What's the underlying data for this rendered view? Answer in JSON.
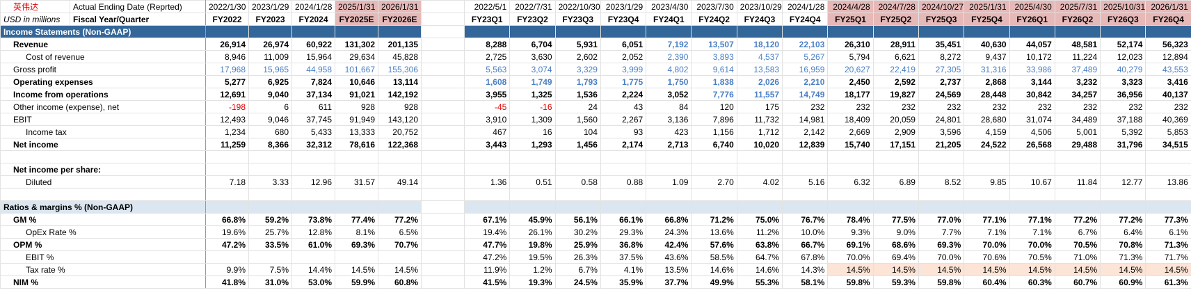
{
  "header": {
    "company": "英伟达",
    "unit": "USD in millions",
    "date_label": "Actual Ending Date (Reprted)",
    "period_label": "Fiscal Year/Quarter",
    "dates": [
      "2022/1/30",
      "2023/1/29",
      "2024/1/28",
      "2025/1/31",
      "2026/1/31",
      "2022/5/1",
      "2022/7/31",
      "2022/10/30",
      "2023/1/29",
      "2023/4/30",
      "2023/7/30",
      "2023/10/29",
      "2024/1/28",
      "2024/4/28",
      "2024/7/28",
      "2024/10/27",
      "2025/1/31",
      "2025/4/30",
      "2025/7/31",
      "2025/10/31",
      "2026/1/31"
    ],
    "periods": [
      "FY2022",
      "FY2023",
      "FY2024",
      "FY2025E",
      "FY2026E",
      "FY23Q1",
      "FY23Q2",
      "FY23Q3",
      "FY23Q4",
      "FY24Q1",
      "FY24Q2",
      "FY24Q3",
      "FY24Q4",
      "FY25Q1",
      "FY25Q2",
      "FY25Q3",
      "FY25Q4",
      "FY26Q1",
      "FY26Q2",
      "FY26Q3",
      "FY26Q4"
    ]
  },
  "income_statement": {
    "title": "Income Statements (Non-GAAP)",
    "rows": [
      {
        "label": "Revenue",
        "values": [
          "26,914",
          "26,974",
          "60,922",
          "131,302",
          "201,135",
          "8,288",
          "6,704",
          "5,931",
          "6,051",
          "7,192",
          "13,507",
          "18,120",
          "22,103",
          "26,310",
          "28,911",
          "35,451",
          "40,630",
          "44,057",
          "48,581",
          "52,174",
          "56,323"
        ]
      },
      {
        "label": "Cost of revenue",
        "values": [
          "8,946",
          "11,009",
          "15,964",
          "29,634",
          "45,828",
          "2,725",
          "3,630",
          "2,602",
          "2,052",
          "2,390",
          "3,893",
          "4,537",
          "5,267",
          "5,794",
          "6,621",
          "8,272",
          "9,437",
          "10,172",
          "11,224",
          "12,023",
          "12,894"
        ]
      },
      {
        "label": "Gross profit",
        "values": [
          "17,968",
          "15,965",
          "44,958",
          "101,667",
          "155,306",
          "5,563",
          "3,074",
          "3,329",
          "3,999",
          "4,802",
          "9,614",
          "13,583",
          "16,959",
          "20,627",
          "22,419",
          "27,305",
          "31,316",
          "33,986",
          "37,489",
          "40,279",
          "43,553"
        ]
      },
      {
        "label": "Operating expenses",
        "values": [
          "5,277",
          "6,925",
          "7,824",
          "10,646",
          "13,114",
          "1,608",
          "1,749",
          "1,793",
          "1,775",
          "1,750",
          "1,838",
          "2,026",
          "2,210",
          "2,450",
          "2,592",
          "2,737",
          "2,868",
          "3,144",
          "3,232",
          "3,323",
          "3,416"
        ]
      },
      {
        "label": "Income from operations",
        "values": [
          "12,691",
          "9,040",
          "37,134",
          "91,021",
          "142,192",
          "3,955",
          "1,325",
          "1,536",
          "2,224",
          "3,052",
          "7,776",
          "11,557",
          "14,749",
          "18,177",
          "19,827",
          "24,569",
          "28,448",
          "30,842",
          "34,257",
          "36,956",
          "40,137"
        ]
      },
      {
        "label": "Other income (expense), net",
        "values": [
          "-198",
          "6",
          "611",
          "928",
          "928",
          "-45",
          "-16",
          "24",
          "43",
          "84",
          "120",
          "175",
          "232",
          "232",
          "232",
          "232",
          "232",
          "232",
          "232",
          "232",
          "232"
        ]
      },
      {
        "label": "EBIT",
        "values": [
          "12,493",
          "9,046",
          "37,745",
          "91,949",
          "143,120",
          "3,910",
          "1,309",
          "1,560",
          "2,267",
          "3,136",
          "7,896",
          "11,732",
          "14,981",
          "18,409",
          "20,059",
          "24,801",
          "28,680",
          "31,074",
          "34,489",
          "37,188",
          "40,369"
        ]
      },
      {
        "label": "Income tax",
        "values": [
          "1,234",
          "680",
          "5,433",
          "13,333",
          "20,752",
          "467",
          "16",
          "104",
          "93",
          "423",
          "1,156",
          "1,712",
          "2,142",
          "2,669",
          "2,909",
          "3,596",
          "4,159",
          "4,506",
          "5,001",
          "5,392",
          "5,853"
        ]
      },
      {
        "label": "Net income",
        "values": [
          "11,259",
          "8,366",
          "32,312",
          "78,616",
          "122,368",
          "3,443",
          "1,293",
          "1,456",
          "2,174",
          "2,713",
          "6,740",
          "10,020",
          "12,839",
          "15,740",
          "17,151",
          "21,205",
          "24,522",
          "26,568",
          "29,488",
          "31,796",
          "34,515"
        ]
      }
    ],
    "per_share": {
      "title": "Net income per share:",
      "rows": [
        {
          "label": "Diluted",
          "values": [
            "7.18",
            "3.33",
            "12.96",
            "31.57",
            "49.14",
            "1.36",
            "0.51",
            "0.58",
            "0.88",
            "1.09",
            "2.70",
            "4.02",
            "5.16",
            "6.32",
            "6.89",
            "8.52",
            "9.85",
            "10.67",
            "11.84",
            "12.77",
            "13.86"
          ]
        }
      ]
    }
  },
  "ratios": {
    "title": "Ratios & margins % (Non-GAAP)",
    "rows": [
      {
        "label": "GM %",
        "values": [
          "66.8%",
          "59.2%",
          "73.8%",
          "77.4%",
          "77.2%",
          "67.1%",
          "45.9%",
          "56.1%",
          "66.1%",
          "66.8%",
          "71.2%",
          "75.0%",
          "76.7%",
          "78.4%",
          "77.5%",
          "77.0%",
          "77.1%",
          "77.1%",
          "77.2%",
          "77.2%",
          "77.3%"
        ]
      },
      {
        "label": "OpEx Rate %",
        "values": [
          "19.6%",
          "25.7%",
          "12.8%",
          "8.1%",
          "6.5%",
          "19.4%",
          "26.1%",
          "30.2%",
          "29.3%",
          "24.3%",
          "13.6%",
          "11.2%",
          "10.0%",
          "9.3%",
          "9.0%",
          "7.7%",
          "7.1%",
          "7.1%",
          "6.7%",
          "6.4%",
          "6.1%"
        ]
      },
      {
        "label": "OPM %",
        "values": [
          "47.2%",
          "33.5%",
          "61.0%",
          "69.3%",
          "70.7%",
          "47.7%",
          "19.8%",
          "25.9%",
          "36.8%",
          "42.4%",
          "57.6%",
          "63.8%",
          "66.7%",
          "69.1%",
          "68.6%",
          "69.3%",
          "70.0%",
          "70.0%",
          "70.5%",
          "70.8%",
          "71.3%"
        ]
      },
      {
        "label": "EBIT %",
        "values": [
          null,
          null,
          null,
          null,
          null,
          "47.2%",
          "19.5%",
          "26.3%",
          "37.5%",
          "43.6%",
          "58.5%",
          "64.7%",
          "67.8%",
          "70.0%",
          "69.4%",
          "70.0%",
          "70.6%",
          "70.5%",
          "71.0%",
          "71.3%",
          "71.7%"
        ]
      },
      {
        "label": "Tax rate %",
        "values": [
          "9.9%",
          "7.5%",
          "14.4%",
          "14.5%",
          "14.5%",
          "11.9%",
          "1.2%",
          "6.7%",
          "4.1%",
          "13.5%",
          "14.6%",
          "14.6%",
          "14.3%",
          "14.5%",
          "14.5%",
          "14.5%",
          "14.5%",
          "14.5%",
          "14.5%",
          "14.5%",
          "14.5%"
        ]
      },
      {
        "label": "NIM %",
        "values": [
          "41.8%",
          "31.0%",
          "53.0%",
          "59.9%",
          "60.8%",
          "41.5%",
          "19.3%",
          "24.5%",
          "35.9%",
          "37.7%",
          "49.9%",
          "55.3%",
          "58.1%",
          "59.8%",
          "59.3%",
          "59.8%",
          "60.4%",
          "60.3%",
          "60.7%",
          "60.9%",
          "61.3%"
        ]
      }
    ]
  }
}
